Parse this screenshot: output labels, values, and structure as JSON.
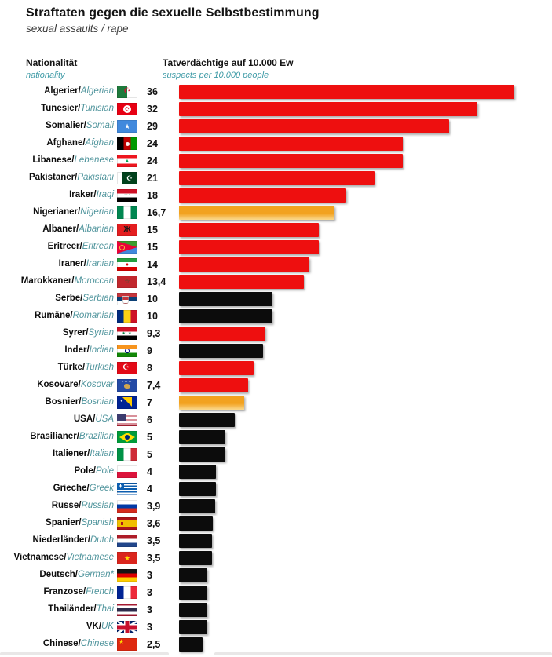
{
  "title": "Straftaten gegen die sexuelle Selbstbestimmung",
  "subtitle": "sexual assaults / rape",
  "strings": {
    "separator": "/"
  },
  "columns": {
    "nationality_de": "Nationalität",
    "nationality_en": "nationality",
    "value_de": "Tatverdächtige auf 10.000 Ew",
    "value_en": "suspects per 10.000 people"
  },
  "colors": {
    "red": "#ee0f0f",
    "black": "#0c0c0c",
    "orange_start": "#f2a21f",
    "orange_end": "#fad98d",
    "accent_teal": "#3d9aa6",
    "label_en_teal": "#4f949c"
  },
  "rows": [
    {
      "de": "Algerier",
      "en": "Algerian",
      "flag": "algeria",
      "value": 36,
      "value_label": "36",
      "color": "red"
    },
    {
      "de": "Tunesier",
      "en": "Tunisian",
      "flag": "tunisia",
      "value": 32,
      "value_label": "32",
      "color": "red"
    },
    {
      "de": "Somalier",
      "en": "Somali",
      "flag": "somalia",
      "value": 29,
      "value_label": "29",
      "color": "red"
    },
    {
      "de": "Afghane",
      "en": "Afghan",
      "flag": "afghanistan",
      "value": 24,
      "value_label": "24",
      "color": "red"
    },
    {
      "de": "Libanese",
      "en": "Lebanese",
      "flag": "lebanon",
      "value": 24,
      "value_label": "24",
      "color": "red"
    },
    {
      "de": "Pakistaner",
      "en": "Pakistani",
      "flag": "pakistan",
      "value": 21,
      "value_label": "21",
      "color": "red"
    },
    {
      "de": "Iraker",
      "en": "Iraqi",
      "flag": "iraq",
      "value": 18,
      "value_label": "18",
      "color": "red"
    },
    {
      "de": "Nigerianer",
      "en": "Nigerian",
      "flag": "nigeria",
      "value": 16.7,
      "value_label": "16,7",
      "color": "orange"
    },
    {
      "de": "Albaner",
      "en": "Albanian",
      "flag": "albania",
      "value": 15,
      "value_label": "15",
      "color": "red"
    },
    {
      "de": "Eritreer",
      "en": "Eritrean",
      "flag": "eritrea",
      "value": 15,
      "value_label": "15",
      "color": "red"
    },
    {
      "de": "Iraner",
      "en": "Iranian",
      "flag": "iran",
      "value": 14,
      "value_label": "14",
      "color": "red"
    },
    {
      "de": "Marokkaner",
      "en": "Moroccan",
      "flag": "morocco",
      "value": 13.4,
      "value_label": "13,4",
      "color": "red"
    },
    {
      "de": "Serbe",
      "en": "Serbian",
      "flag": "serbia",
      "value": 10,
      "value_label": "10",
      "color": "black"
    },
    {
      "de": "Rumäne",
      "en": "Romanian",
      "flag": "romania",
      "value": 10,
      "value_label": "10",
      "color": "black"
    },
    {
      "de": "Syrer",
      "en": "Syrian",
      "flag": "syria",
      "value": 9.3,
      "value_label": "9,3",
      "color": "red"
    },
    {
      "de": "Inder",
      "en": "Indian",
      "flag": "india",
      "value": 9,
      "value_label": "9",
      "color": "black"
    },
    {
      "de": "Türke",
      "en": "Turkish",
      "flag": "turkey",
      "value": 8,
      "value_label": "8",
      "color": "red"
    },
    {
      "de": "Kosovare",
      "en": "Kosovar",
      "flag": "kosovo",
      "value": 7.4,
      "value_label": "7,4",
      "color": "red"
    },
    {
      "de": "Bosnier",
      "en": "Bosnian",
      "flag": "bosnia",
      "value": 7,
      "value_label": "7",
      "color": "orange"
    },
    {
      "de": "USA",
      "en": "USA",
      "flag": "usa",
      "value": 6,
      "value_label": "6",
      "color": "black"
    },
    {
      "de": "Brasilianer",
      "en": "Brazilian",
      "flag": "brazil",
      "value": 5,
      "value_label": "5",
      "color": "black"
    },
    {
      "de": "Italiener",
      "en": "Italian",
      "flag": "italy",
      "value": 5,
      "value_label": "5",
      "color": "black"
    },
    {
      "de": "Pole",
      "en": "Pole",
      "flag": "poland",
      "value": 4,
      "value_label": "4",
      "color": "black"
    },
    {
      "de": "Grieche",
      "en": "Greek",
      "flag": "greece",
      "value": 4,
      "value_label": "4",
      "color": "black"
    },
    {
      "de": "Russe",
      "en": "Russian",
      "flag": "russia",
      "value": 3.9,
      "value_label": "3,9",
      "color": "black"
    },
    {
      "de": "Spanier",
      "en": "Spanish",
      "flag": "spain",
      "value": 3.6,
      "value_label": "3,6",
      "color": "black"
    },
    {
      "de": "Niederländer",
      "en": "Dutch",
      "flag": "netherlands",
      "value": 3.5,
      "value_label": "3,5",
      "color": "black"
    },
    {
      "de": "Vietnamese",
      "en": "Vietnamese",
      "flag": "vietnam",
      "value": 3.5,
      "value_label": "3,5",
      "color": "black"
    },
    {
      "de": "Deutsch",
      "en": "German*",
      "flag": "germany",
      "value": 3,
      "value_label": "3",
      "color": "black"
    },
    {
      "de": "Franzose",
      "en": "French",
      "flag": "france",
      "value": 3,
      "value_label": "3",
      "color": "black"
    },
    {
      "de": "Thailänder",
      "en": "Thai",
      "flag": "thailand",
      "value": 3,
      "value_label": "3",
      "color": "black"
    },
    {
      "de": "VK",
      "en": "UK",
      "flag": "uk",
      "value": 3,
      "value_label": "3",
      "color": "black"
    },
    {
      "de": "Chinese",
      "en": "Chinese",
      "flag": "china",
      "value": 2.5,
      "value_label": "2,5",
      "color": "black"
    }
  ],
  "chart_data": {
    "type": "bar",
    "orientation": "horizontal",
    "title": "Straftaten gegen die sexuelle Selbstbestimmung",
    "subtitle": "sexual assaults / rape",
    "xlabel": "Tatverdächtige auf 10.000 Ew (suspects per 10.000 people)",
    "ylabel": "Nationalität / nationality",
    "xlim": [
      0,
      36
    ],
    "grid": false,
    "legend": false,
    "categories": [
      "Algerier/Algerian",
      "Tunesier/Tunisian",
      "Somalier/Somali",
      "Afghane/Afghan",
      "Libanese/Lebanese",
      "Pakistaner/Pakistani",
      "Iraker/Iraqi",
      "Nigerianer/Nigerian",
      "Albaner/Albanian",
      "Eritreer/Eritrean",
      "Iraner/Iranian",
      "Marokkaner/Moroccan",
      "Serbe/Serbian",
      "Rumäne/Romanian",
      "Syrer/Syrian",
      "Inder/Indian",
      "Türke/Turkish",
      "Kosovare/Kosovar",
      "Bosnier/Bosnian",
      "USA/USA",
      "Brasilianer/Brazilian",
      "Italiener/Italian",
      "Pole/Pole",
      "Grieche/Greek",
      "Russe/Russian",
      "Spanier/Spanish",
      "Niederländer/Dutch",
      "Vietnamese/Vietnamese",
      "Deutsch/German*",
      "Franzose/French",
      "Thailänder/Thai",
      "VK/UK",
      "Chinese/Chinese"
    ],
    "values": [
      36,
      32,
      29,
      24,
      24,
      21,
      18,
      16.7,
      15,
      15,
      14,
      13.4,
      10,
      10,
      9.3,
      9,
      8,
      7.4,
      7,
      6,
      5,
      5,
      4,
      4,
      3.9,
      3.6,
      3.5,
      3.5,
      3,
      3,
      3,
      3,
      2.5
    ],
    "bar_colors": [
      "red",
      "red",
      "red",
      "red",
      "red",
      "red",
      "red",
      "orange",
      "red",
      "red",
      "red",
      "red",
      "black",
      "black",
      "red",
      "black",
      "red",
      "red",
      "orange",
      "black",
      "black",
      "black",
      "black",
      "black",
      "black",
      "black",
      "black",
      "black",
      "black",
      "black",
      "black",
      "black",
      "black"
    ]
  }
}
